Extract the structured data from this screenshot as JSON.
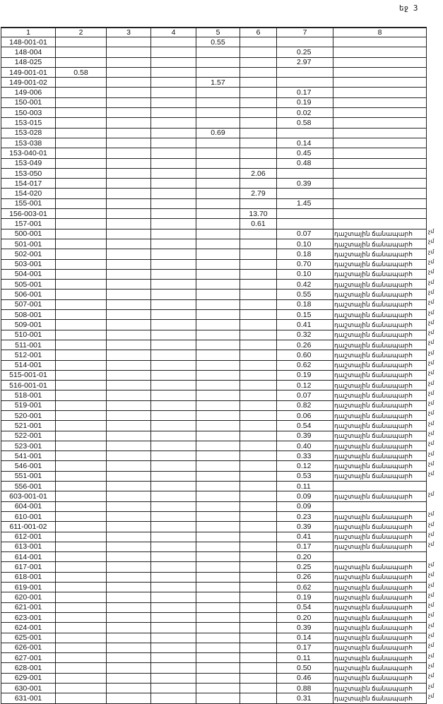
{
  "page_label": "եջ 3",
  "table": {
    "headers": [
      "1",
      "2",
      "3",
      "4",
      "5",
      "6",
      "7",
      "8"
    ],
    "note_text": "դաշտային ճանապարհ",
    "side_mark": "չմ",
    "rows": [
      [
        "148-001-01",
        "",
        "",
        "",
        "0.55",
        "",
        "",
        ""
      ],
      [
        "148-004",
        "",
        "",
        "",
        "",
        "",
        "0.25",
        ""
      ],
      [
        "148-025",
        "",
        "",
        "",
        "",
        "",
        "2.97",
        ""
      ],
      [
        "149-001-01",
        "0.58",
        "",
        "",
        "",
        "",
        "",
        ""
      ],
      [
        "149-001-02",
        "",
        "",
        "",
        "1.57",
        "",
        "",
        ""
      ],
      [
        "149-006",
        "",
        "",
        "",
        "",
        "",
        "0.17",
        ""
      ],
      [
        "150-001",
        "",
        "",
        "",
        "",
        "",
        "0.19",
        ""
      ],
      [
        "150-003",
        "",
        "",
        "",
        "",
        "",
        "0.02",
        ""
      ],
      [
        "153-015",
        "",
        "",
        "",
        "",
        "",
        "0.58",
        ""
      ],
      [
        "153-028",
        "",
        "",
        "",
        "0.69",
        "",
        "",
        ""
      ],
      [
        "153-038",
        "",
        "",
        "",
        "",
        "",
        "0.14",
        ""
      ],
      [
        "153-040-01",
        "",
        "",
        "",
        "",
        "",
        "0.45",
        ""
      ],
      [
        "153-049",
        "",
        "",
        "",
        "",
        "",
        "0.48",
        ""
      ],
      [
        "153-050",
        "",
        "",
        "",
        "",
        "2.06",
        "",
        ""
      ],
      [
        "154-017",
        "",
        "",
        "",
        "",
        "",
        "0.39",
        ""
      ],
      [
        "154-020",
        "",
        "",
        "",
        "",
        "2.79",
        "",
        ""
      ],
      [
        "155-001",
        "",
        "",
        "",
        "",
        "",
        "1.45",
        ""
      ],
      [
        "156-003-01",
        "",
        "",
        "",
        "",
        "13.70",
        "",
        ""
      ],
      [
        "157-001",
        "",
        "",
        "",
        "",
        "0.61",
        "",
        ""
      ],
      [
        "500-001",
        "",
        "",
        "",
        "",
        "",
        "0.07",
        "դաշտային ճանապարհ"
      ],
      [
        "501-001",
        "",
        "",
        "",
        "",
        "",
        "0.10",
        "դաշտային ճանապարհ"
      ],
      [
        "502-001",
        "",
        "",
        "",
        "",
        "",
        "0.18",
        "դաշտային ճանապարհ"
      ],
      [
        "503-001",
        "",
        "",
        "",
        "",
        "",
        "0.70",
        "դաշտային ճանապարհ"
      ],
      [
        "504-001",
        "",
        "",
        "",
        "",
        "",
        "0.10",
        "դաշտային ճանապարհ"
      ],
      [
        "505-001",
        "",
        "",
        "",
        "",
        "",
        "0.42",
        "դաշտային ճանապարհ"
      ],
      [
        "506-001",
        "",
        "",
        "",
        "",
        "",
        "0.55",
        "դաշտային ճանապարհ"
      ],
      [
        "507-001",
        "",
        "",
        "",
        "",
        "",
        "0.18",
        "դաշտային ճանապարհ"
      ],
      [
        "508-001",
        "",
        "",
        "",
        "",
        "",
        "0.15",
        "դաշտային ճանապարհ"
      ],
      [
        "509-001",
        "",
        "",
        "",
        "",
        "",
        "0.41",
        "դաշտային ճանապարհ"
      ],
      [
        "510-001",
        "",
        "",
        "",
        "",
        "",
        "0.32",
        "դաշտային ճանապարհ"
      ],
      [
        "511-001",
        "",
        "",
        "",
        "",
        "",
        "0.26",
        "դաշտային ճանապարհ"
      ],
      [
        "512-001",
        "",
        "",
        "",
        "",
        "",
        "0.60",
        "դաշտային ճանապարհ"
      ],
      [
        "514-001",
        "",
        "",
        "",
        "",
        "",
        "0.62",
        "դաշտային ճանապարհ"
      ],
      [
        "515-001-01",
        "",
        "",
        "",
        "",
        "",
        "0.19",
        "դաշտային ճանապարհ"
      ],
      [
        "516-001-01",
        "",
        "",
        "",
        "",
        "",
        "0.12",
        "դաշտային ճանապարհ"
      ],
      [
        "518-001",
        "",
        "",
        "",
        "",
        "",
        "0.07",
        "դաշտային ճանապարհ"
      ],
      [
        "519-001",
        "",
        "",
        "",
        "",
        "",
        "0.82",
        "դաշտային ճանապարհ"
      ],
      [
        "520-001",
        "",
        "",
        "",
        "",
        "",
        "0.06",
        "դաշտային ճանապարհ"
      ],
      [
        "521-001",
        "",
        "",
        "",
        "",
        "",
        "0.54",
        "դաշտային ճանապարհ"
      ],
      [
        "522-001",
        "",
        "",
        "",
        "",
        "",
        "0.39",
        "դաշտային ճանապարհ"
      ],
      [
        "523-001",
        "",
        "",
        "",
        "",
        "",
        "0.40",
        "դաշտային ճանապարհ"
      ],
      [
        "541-001",
        "",
        "",
        "",
        "",
        "",
        "0.33",
        "դաշտային ճանապարհ"
      ],
      [
        "546-001",
        "",
        "",
        "",
        "",
        "",
        "0.12",
        "դաշտային ճանապարհ"
      ],
      [
        "551-001",
        "",
        "",
        "",
        "",
        "",
        "0.53",
        "դաշտային ճանապարհ"
      ],
      [
        "556-001",
        "",
        "",
        "",
        "",
        "",
        "0.11",
        ""
      ],
      [
        "603-001-01",
        "",
        "",
        "",
        "",
        "",
        "0.09",
        "դաշտային ճանապարհ"
      ],
      [
        "604-001",
        "",
        "",
        "",
        "",
        "",
        "0.09",
        ""
      ],
      [
        "610-001",
        "",
        "",
        "",
        "",
        "",
        "0.23",
        "դաշտային ճանապարհ"
      ],
      [
        "611-001-02",
        "",
        "",
        "",
        "",
        "",
        "0.39",
        "դաշտային ճանապարհ"
      ],
      [
        "612-001",
        "",
        "",
        "",
        "",
        "",
        "0.41",
        "դաշտային ճանապարհ"
      ],
      [
        "613-001",
        "",
        "",
        "",
        "",
        "",
        "0.17",
        "դաշտային ճանապարհ"
      ],
      [
        "614-001",
        "",
        "",
        "",
        "",
        "",
        "0.20",
        ""
      ],
      [
        "617-001",
        "",
        "",
        "",
        "",
        "",
        "0.25",
        "դաշտային ճանապարհ"
      ],
      [
        "618-001",
        "",
        "",
        "",
        "",
        "",
        "0.26",
        "դաշտային ճանապարհ"
      ],
      [
        "619-001",
        "",
        "",
        "",
        "",
        "",
        "0.62",
        "դաշտային ճանապարհ"
      ],
      [
        "620-001",
        "",
        "",
        "",
        "",
        "",
        "0.19",
        "դաշտային ճանապարհ"
      ],
      [
        "621-001",
        "",
        "",
        "",
        "",
        "",
        "0.54",
        "դաշտային ճանապարհ"
      ],
      [
        "623-001",
        "",
        "",
        "",
        "",
        "",
        "0.20",
        "դաշտային ճանապարհ"
      ],
      [
        "624-001",
        "",
        "",
        "",
        "",
        "",
        "0.39",
        "դաշտային ճանապարհ"
      ],
      [
        "625-001",
        "",
        "",
        "",
        "",
        "",
        "0.14",
        "դաշտային ճանապարհ"
      ],
      [
        "626-001",
        "",
        "",
        "",
        "",
        "",
        "0.17",
        "դաշտային ճանապարհ"
      ],
      [
        "627-001",
        "",
        "",
        "",
        "",
        "",
        "0.11",
        "դաշտային ճանապարհ"
      ],
      [
        "628-001",
        "",
        "",
        "",
        "",
        "",
        "0.50",
        "դաշտային ճանապարհ"
      ],
      [
        "629-001",
        "",
        "",
        "",
        "",
        "",
        "0.46",
        "դաշտային ճանապարհ"
      ],
      [
        "630-001",
        "",
        "",
        "",
        "",
        "",
        "0.88",
        "դաշտային ճանապարհ"
      ],
      [
        "631-001",
        "",
        "",
        "",
        "",
        "",
        "0.31",
        "դաշտային ճանապարհ"
      ]
    ]
  }
}
